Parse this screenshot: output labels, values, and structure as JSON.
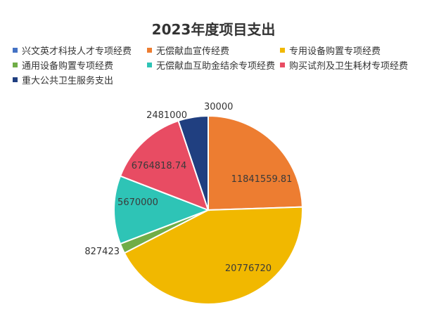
{
  "chart_data": {
    "type": "pie",
    "title": "2023年度项目支出",
    "start": "12 o'clock",
    "direction": "clockwise",
    "legend_position": "top",
    "slices": [
      {
        "label": "兴文英才科技人才专项经费",
        "value": 0,
        "color": "#4472c4",
        "value_label": ""
      },
      {
        "label": "无偿献血宣传经费",
        "value": 11841559.81,
        "color": "#ed7d31",
        "value_label": "11841559.81"
      },
      {
        "label": "专用设备购置专项经费",
        "value": 20776720,
        "color": "#f1b800",
        "value_label": "20776720"
      },
      {
        "label": "通用设备购置专项经费",
        "value": 827423,
        "color": "#70ad47",
        "value_label": "827423"
      },
      {
        "label": "无偿献血互助金结余专项经费",
        "value": 5670000,
        "color": "#2ec4b6",
        "value_label": "5670000"
      },
      {
        "label": "购买试剂及卫生耗材专项经费",
        "value": 6764818.74,
        "color": "#e84c63",
        "value_label": "6764818.74"
      },
      {
        "label": "重大公共卫生服务支出",
        "value": 2481000,
        "color": "#203f80",
        "value_label": "2481000"
      }
    ],
    "extra_value_labels": [
      "30000"
    ]
  }
}
